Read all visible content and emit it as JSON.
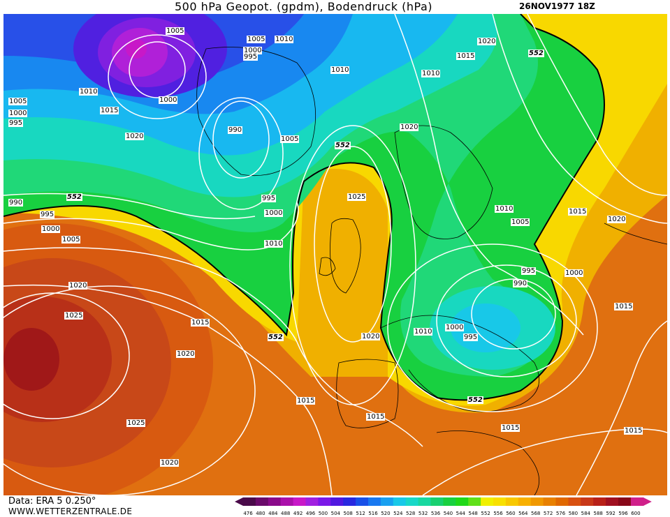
{
  "header": {
    "title": "500 hPa Geopot. (gpdm), Bodendruck (hPa)",
    "datetime": "26NOV1977 18Z"
  },
  "footer": {
    "source": "Data: ERA 5 0.250°",
    "website": "WWW.WETTERZENTRALE.DE"
  },
  "map": {
    "pressure_labels": [
      "1005",
      "1005",
      "1010",
      "1000",
      "995",
      "1010",
      "1015",
      "1020",
      "1010",
      "1005",
      "1010",
      "1000",
      "995",
      "1015",
      "1020",
      "1000",
      "990",
      "1005",
      "1020",
      "1025",
      "995",
      "1000",
      "1010",
      "1010",
      "1005",
      "1015",
      "1020",
      "990",
      "995",
      "1000",
      "1005",
      "1020",
      "1025",
      "1015",
      "1020",
      "1000",
      "995",
      "990",
      "1010",
      "1000",
      "995",
      "1020",
      "1015",
      "1025",
      "1015",
      "1015",
      "1015",
      "1020",
      "1015",
      "1025",
      "1020"
    ],
    "geopotential_labels": [
      "552",
      "552",
      "552",
      "552",
      "552",
      "552"
    ]
  },
  "colorbar": {
    "ticks": [
      "476",
      "480",
      "484",
      "488",
      "492",
      "496",
      "500",
      "504",
      "508",
      "512",
      "516",
      "520",
      "524",
      "528",
      "532",
      "536",
      "540",
      "544",
      "548",
      "552",
      "556",
      "560",
      "564",
      "568",
      "572",
      "576",
      "580",
      "584",
      "588",
      "592",
      "596",
      "600"
    ],
    "colors": [
      "#4a0a4a",
      "#6a0a6a",
      "#8a0a8a",
      "#aa10aa",
      "#c818c8",
      "#a020e0",
      "#7a18e8",
      "#5018e0",
      "#2828e0",
      "#1850e8",
      "#1878f0",
      "#18a0f0",
      "#18c8e8",
      "#18d8c8",
      "#18d8a0",
      "#18d070",
      "#18d040",
      "#20d818",
      "#60e018",
      "#f0f000",
      "#f8e000",
      "#f8c800",
      "#f8b000",
      "#f09800",
      "#e88000",
      "#e06800",
      "#d85010",
      "#c83818",
      "#b82018",
      "#a01020",
      "#880818",
      "#d0208a"
    ]
  }
}
